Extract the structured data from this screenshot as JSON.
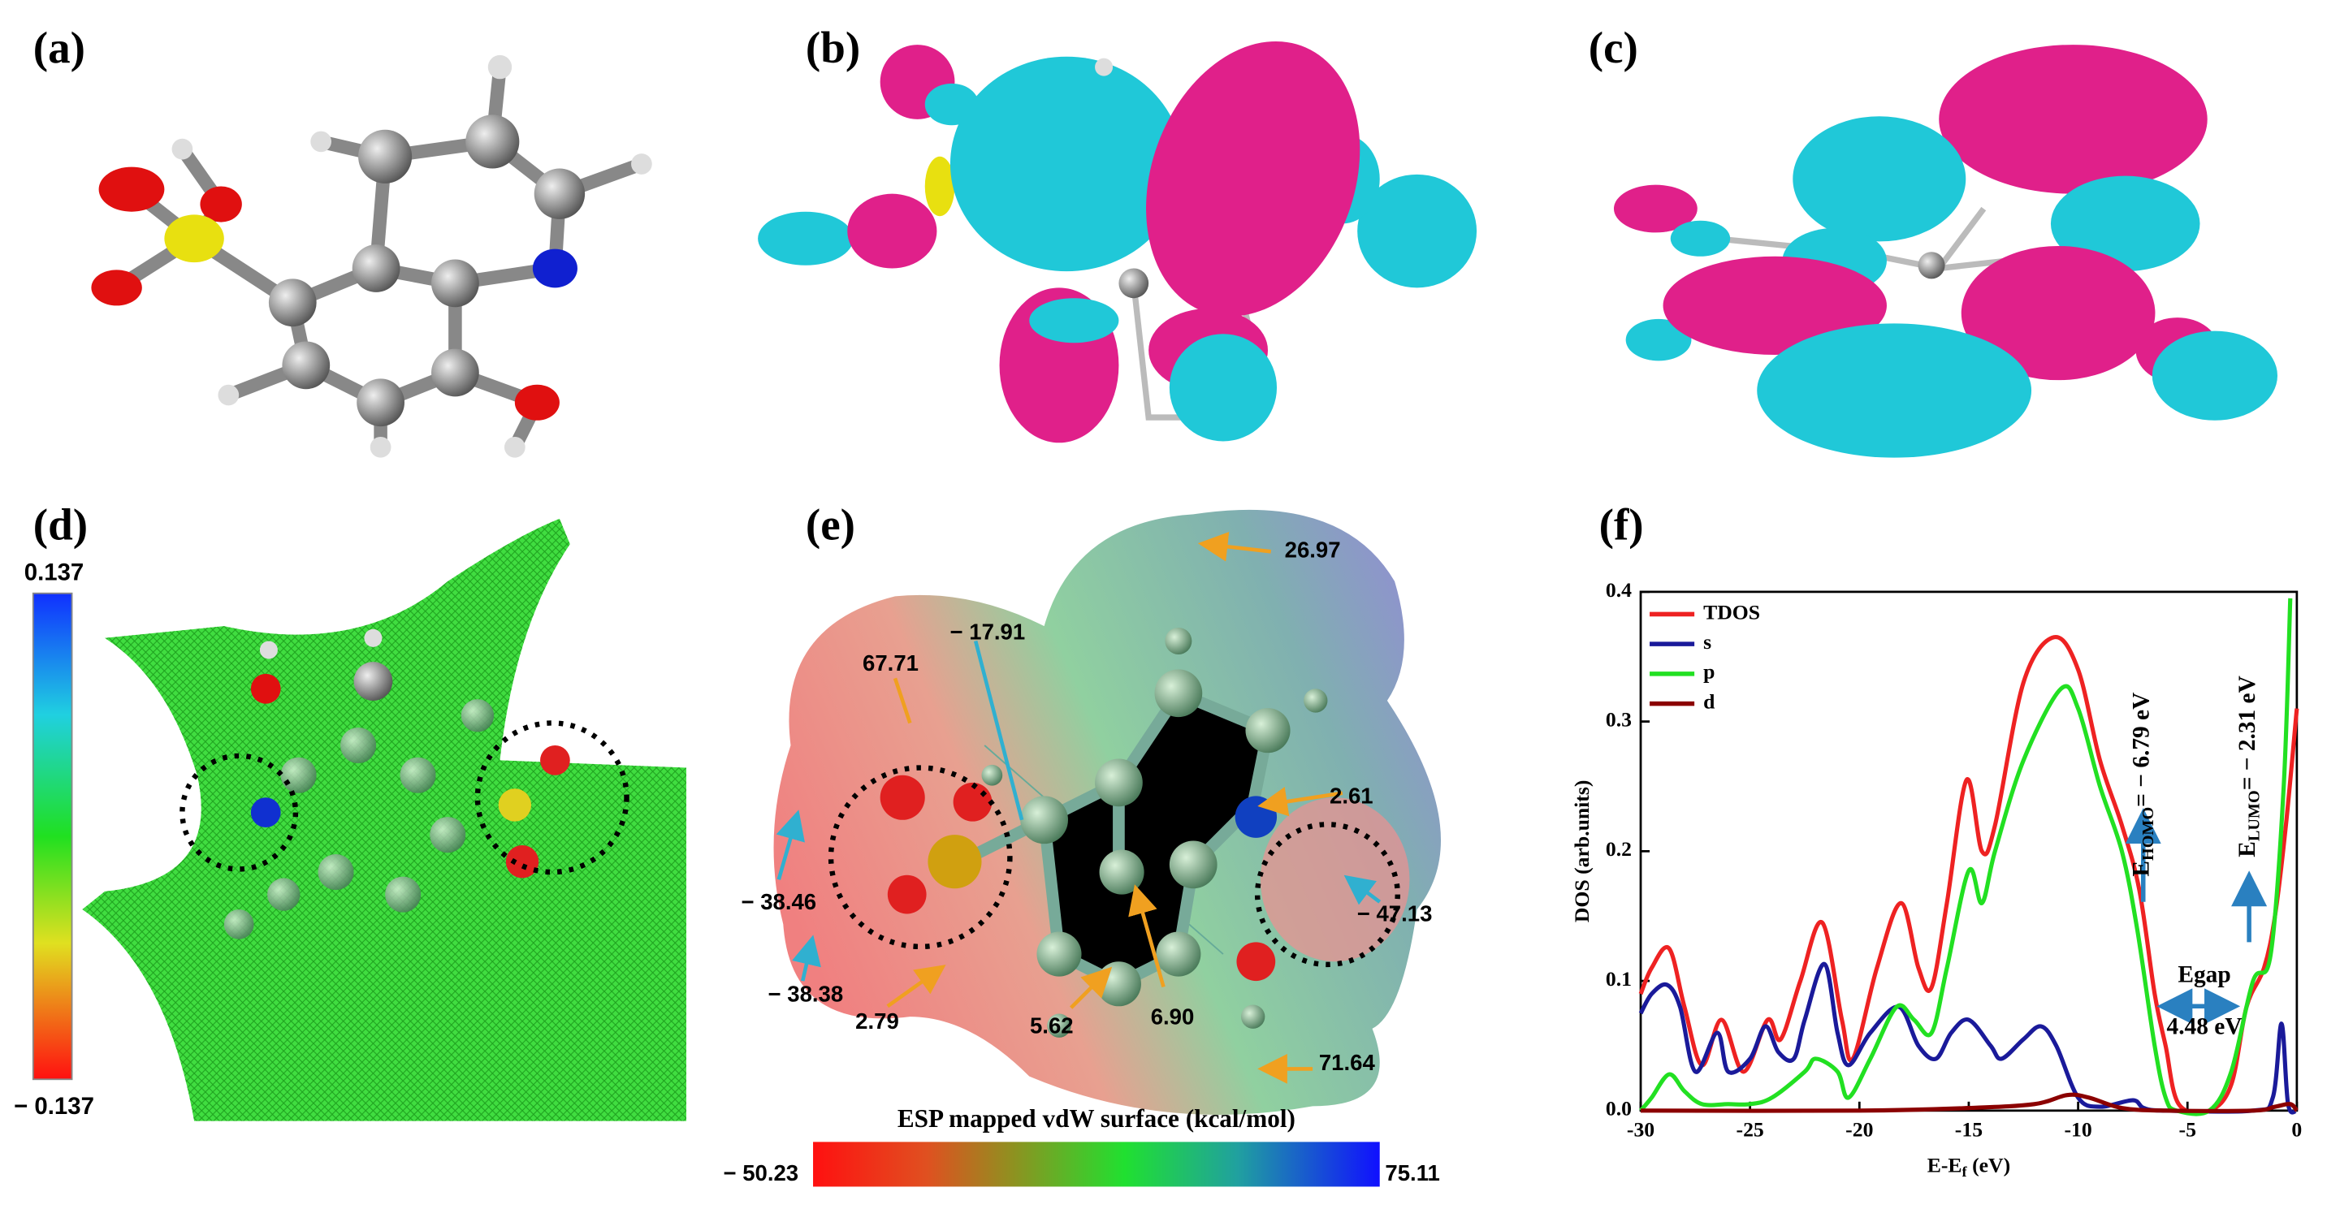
{
  "panels": {
    "labels": [
      "(a)",
      "(b)",
      "(c)",
      "(d)",
      "(e)",
      "(f)"
    ],
    "d": {
      "colorbar_max": "0.137",
      "colorbar_min": "− 0.137"
    },
    "e": {
      "annotations": [
        "26.97",
        "67.71",
        "− 17.91",
        "2.61",
        "− 38.46",
        "− 38.38",
        "2.79",
        "5.62",
        "6.90",
        "− 47.13",
        "71.64"
      ],
      "colorbar_title": "ESP mapped vdW surface (kcal/mol)",
      "colorbar_min": "− 50.23",
      "colorbar_max": "75.11"
    }
  },
  "chart_data": {
    "type": "line",
    "xlabel": [
      "E-E",
      "f",
      " (eV)"
    ],
    "ylabel": "DOS (arb.units)",
    "xlim": [
      -30,
      0
    ],
    "ylim": [
      0,
      0.4
    ],
    "xticks": [
      -30,
      -25,
      -20,
      -15,
      -10,
      -5,
      0
    ],
    "yticks": [
      {
        "value": 0,
        "label": "0.0"
      },
      0.1,
      0.2,
      0.3,
      0.4
    ],
    "legend": "upper left",
    "series": [
      {
        "name": "TDOS",
        "color": "#ee2222",
        "x": [
          -30,
          -29.5,
          -28.7,
          -28,
          -27.2,
          -26.3,
          -25.3,
          -24.2,
          -23.6,
          -22.7,
          -21.7,
          -20.8,
          -20.3,
          -19.2,
          -18.1,
          -17.3,
          -16.7,
          -16,
          -15.1,
          -14.4,
          -13.8,
          -12.5,
          -11.1,
          -10,
          -9,
          -8,
          -7.2,
          -6.5,
          -6,
          -5.4,
          -4,
          -3,
          -2.3,
          -1.5,
          -1,
          -0.5,
          0
        ],
        "values": [
          0.09,
          0.11,
          0.125,
          0.08,
          0.035,
          0.07,
          0.03,
          0.07,
          0.055,
          0.1,
          0.145,
          0.07,
          0.04,
          0.11,
          0.16,
          0.11,
          0.095,
          0.16,
          0.255,
          0.2,
          0.22,
          0.33,
          0.365,
          0.34,
          0.27,
          0.22,
          0.17,
          0.09,
          0.05,
          0.005,
          0,
          0.02,
          0.08,
          0.11,
          0.15,
          0.22,
          0.31
        ]
      },
      {
        "name": "s",
        "color": "#1a1a9a",
        "x": [
          -30,
          -29.5,
          -28.8,
          -28.2,
          -27.5,
          -26.5,
          -26,
          -25,
          -24.3,
          -23.7,
          -23,
          -22.5,
          -21.6,
          -21,
          -20.5,
          -19.5,
          -18.2,
          -17.3,
          -16.5,
          -15.8,
          -15,
          -14,
          -13.5,
          -12.5,
          -11.7,
          -11,
          -10,
          -9,
          -7.5,
          -7,
          -6,
          -2,
          -1.1,
          -0.7,
          -0.4,
          0
        ],
        "values": [
          0.075,
          0.09,
          0.097,
          0.08,
          0.03,
          0.06,
          0.03,
          0.04,
          0.065,
          0.045,
          0.04,
          0.07,
          0.113,
          0.06,
          0.035,
          0.06,
          0.08,
          0.05,
          0.04,
          0.06,
          0.07,
          0.05,
          0.04,
          0.055,
          0.065,
          0.05,
          0.01,
          0.003,
          0.008,
          0.002,
          0,
          0,
          0.01,
          0.067,
          0.005,
          0
        ]
      },
      {
        "name": "p",
        "color": "#22e022",
        "x": [
          -30,
          -29.5,
          -28.7,
          -28,
          -27.2,
          -26,
          -25,
          -24,
          -22.5,
          -22,
          -21,
          -20.5,
          -19.5,
          -18.3,
          -17.5,
          -16.7,
          -16,
          -15,
          -14.4,
          -13.8,
          -12.5,
          -10.8,
          -10,
          -9,
          -8,
          -7.3,
          -6.5,
          -6,
          -5.5,
          -4,
          -3,
          -2,
          -1.2,
          -0.6,
          -0.3
        ],
        "values": [
          0,
          0.01,
          0.028,
          0.015,
          0.005,
          0.005,
          0.005,
          0.01,
          0.03,
          0.04,
          0.03,
          0.01,
          0.04,
          0.08,
          0.07,
          0.06,
          0.11,
          0.185,
          0.16,
          0.2,
          0.27,
          0.325,
          0.31,
          0.25,
          0.2,
          0.14,
          0.05,
          0.01,
          0,
          0,
          0.03,
          0.1,
          0.12,
          0.25,
          0.395
        ]
      },
      {
        "name": "d",
        "color": "#8b0000",
        "x": [
          -30,
          -20,
          -15,
          -12,
          -10.5,
          -9.5,
          -8,
          -6,
          -2,
          -1,
          -0.3,
          0
        ],
        "values": [
          0,
          0,
          0.002,
          0.005,
          0.012,
          0.01,
          0.002,
          0,
          0,
          0.003,
          0.005,
          0
        ]
      }
    ],
    "homo_label": [
      "E",
      "HOMO",
      "= − 6.79 eV"
    ],
    "lumo_label": [
      "E",
      "LUMO",
      "= − 2.31 eV"
    ],
    "gap_label": "Egap",
    "gap_value": "4.48 eV"
  }
}
